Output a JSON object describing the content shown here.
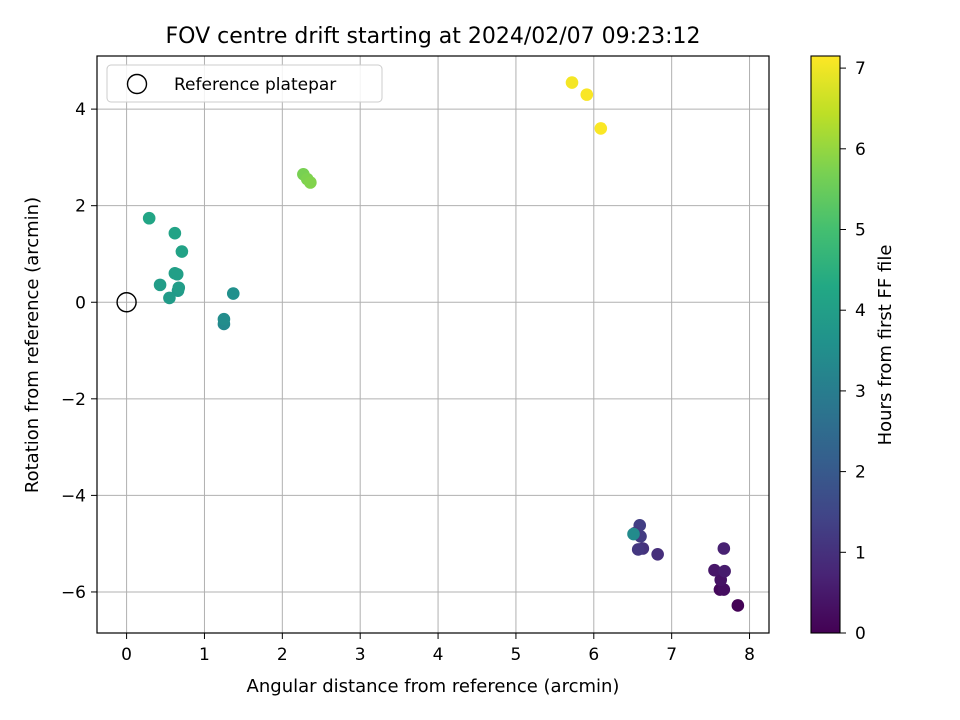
{
  "chart_data": {
    "type": "scatter",
    "title": "FOV centre drift starting at 2024/02/07 09:23:12",
    "xlabel": "Angular distance from reference (arcmin)",
    "ylabel": "Rotation from reference (arcmin)",
    "xlim": [
      -0.38,
      8.25
    ],
    "ylim": [
      -6.85,
      5.1
    ],
    "xticks": [
      0,
      1,
      2,
      3,
      4,
      5,
      6,
      7,
      8
    ],
    "yticks": [
      -6,
      -4,
      -2,
      0,
      2,
      4
    ],
    "grid": true,
    "legend": {
      "position": "upper-left",
      "entries": [
        {
          "label": "Reference platepar",
          "marker": "hollow-circle",
          "x": 0,
          "y": 0
        }
      ]
    },
    "colorbar": {
      "label": "Hours from first FF file",
      "range": [
        0,
        7.15
      ],
      "ticks": [
        0,
        1,
        2,
        3,
        4,
        5,
        6,
        7
      ],
      "colormap": "viridis"
    },
    "points": [
      {
        "x": 7.85,
        "y": -6.28,
        "hours": 0.05
      },
      {
        "x": 7.62,
        "y": -5.95,
        "hours": 0.15
      },
      {
        "x": 7.67,
        "y": -5.95,
        "hours": 0.25
      },
      {
        "x": 7.63,
        "y": -5.75,
        "hours": 0.35
      },
      {
        "x": 7.55,
        "y": -5.55,
        "hours": 0.45
      },
      {
        "x": 7.68,
        "y": -5.57,
        "hours": 0.55
      },
      {
        "x": 7.67,
        "y": -5.1,
        "hours": 0.65
      },
      {
        "x": 6.82,
        "y": -5.22,
        "hours": 0.95
      },
      {
        "x": 6.63,
        "y": -5.1,
        "hours": 1.05
      },
      {
        "x": 6.57,
        "y": -5.12,
        "hours": 1.15
      },
      {
        "x": 6.6,
        "y": -4.85,
        "hours": 1.25
      },
      {
        "x": 6.59,
        "y": -4.62,
        "hours": 1.3
      },
      {
        "x": 6.53,
        "y": -4.78,
        "hours": 1.2
      },
      {
        "x": 6.51,
        "y": -4.8,
        "hours": 3.4
      },
      {
        "x": 1.25,
        "y": -0.45,
        "hours": 3.35
      },
      {
        "x": 1.25,
        "y": -0.35,
        "hours": 3.45
      },
      {
        "x": 1.37,
        "y": 0.18,
        "hours": 3.55
      },
      {
        "x": 0.66,
        "y": 0.24,
        "hours": 3.85
      },
      {
        "x": 0.55,
        "y": 0.09,
        "hours": 3.9
      },
      {
        "x": 0.43,
        "y": 0.36,
        "hours": 3.95
      },
      {
        "x": 0.67,
        "y": 0.3,
        "hours": 3.95
      },
      {
        "x": 0.62,
        "y": 0.6,
        "hours": 4.0
      },
      {
        "x": 0.65,
        "y": 0.58,
        "hours": 4.0
      },
      {
        "x": 0.71,
        "y": 1.05,
        "hours": 4.1
      },
      {
        "x": 0.62,
        "y": 1.43,
        "hours": 4.15
      },
      {
        "x": 0.29,
        "y": 1.74,
        "hours": 4.2
      },
      {
        "x": 2.27,
        "y": 2.65,
        "hours": 5.7
      },
      {
        "x": 2.32,
        "y": 2.55,
        "hours": 5.75
      },
      {
        "x": 2.36,
        "y": 2.48,
        "hours": 5.8
      },
      {
        "x": 5.72,
        "y": 4.55,
        "hours": 7.05
      },
      {
        "x": 5.91,
        "y": 4.3,
        "hours": 7.1
      },
      {
        "x": 6.09,
        "y": 3.6,
        "hours": 7.12
      }
    ]
  }
}
